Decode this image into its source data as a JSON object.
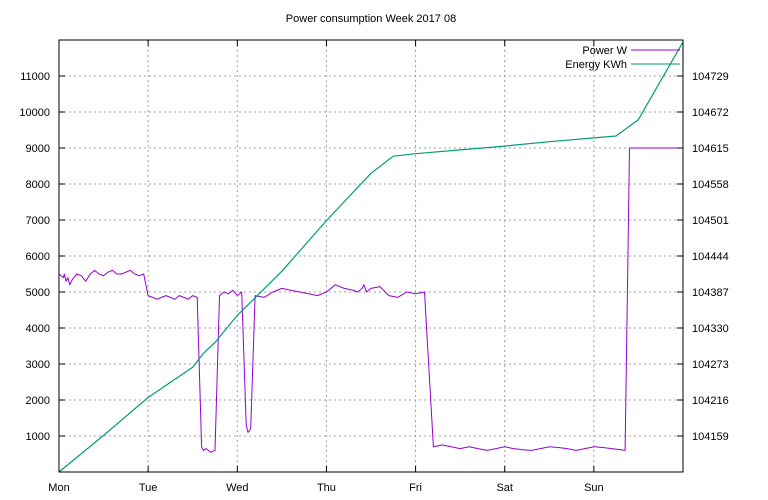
{
  "chart_data": {
    "type": "line",
    "title": "Power consumption Week 2017 08",
    "x_labels": [
      "Mon",
      "Tue",
      "Wed",
      "Thu",
      "Fri",
      "Sat",
      "Sun"
    ],
    "xlim_days": [
      0,
      7
    ],
    "y_left": {
      "ticks": [
        1000,
        2000,
        3000,
        4000,
        5000,
        6000,
        7000,
        8000,
        9000,
        10000,
        11000
      ],
      "ylim": [
        0,
        12000
      ]
    },
    "y_right": {
      "ticks": [
        104159,
        104216,
        104273,
        104330,
        104387,
        104444,
        104501,
        104558,
        104615,
        104672,
        104729
      ],
      "ylim": [
        104102,
        104786
      ]
    },
    "grid": true,
    "legend_position": "top-right",
    "series": [
      {
        "name": "Power W",
        "axis": "left",
        "color": "#9400d3",
        "x": [
          0.0,
          0.05,
          0.06,
          0.08,
          0.1,
          0.12,
          0.15,
          0.2,
          0.25,
          0.3,
          0.35,
          0.4,
          0.45,
          0.5,
          0.55,
          0.6,
          0.65,
          0.7,
          0.75,
          0.8,
          0.85,
          0.9,
          0.95,
          1.0,
          1.05,
          1.1,
          1.15,
          1.2,
          1.25,
          1.3,
          1.35,
          1.4,
          1.45,
          1.5,
          1.55,
          1.6,
          1.62,
          1.65,
          1.7,
          1.75,
          1.8,
          1.85,
          1.9,
          1.95,
          2.0,
          2.05,
          2.1,
          2.12,
          2.15,
          2.2,
          2.3,
          2.4,
          2.5,
          2.6,
          2.7,
          2.8,
          2.9,
          3.0,
          3.1,
          3.2,
          3.3,
          3.35,
          3.4,
          3.42,
          3.45,
          3.5,
          3.6,
          3.7,
          3.8,
          3.9,
          4.0,
          4.1,
          4.2,
          4.3,
          4.4,
          4.5,
          4.6,
          4.7,
          4.8,
          4.9,
          5.0,
          5.1,
          5.2,
          5.3,
          5.4,
          5.5,
          5.6,
          5.7,
          5.8,
          5.9,
          6.0,
          6.1,
          6.2,
          6.3,
          6.35,
          6.4,
          6.5,
          6.6,
          6.7,
          6.8,
          6.9,
          7.0
        ],
        "y": [
          5500,
          5400,
          5500,
          5300,
          5400,
          5200,
          5350,
          5500,
          5450,
          5300,
          5500,
          5600,
          5500,
          5450,
          5550,
          5600,
          5500,
          5500,
          5550,
          5600,
          5500,
          5450,
          5500,
          4900,
          4850,
          4800,
          4850,
          4900,
          4850,
          4800,
          4900,
          4850,
          4800,
          4900,
          4850,
          700,
          600,
          650,
          550,
          600,
          4900,
          5000,
          4950,
          5050,
          4900,
          5000,
          1300,
          1100,
          1200,
          4900,
          4850,
          5000,
          5100,
          5050,
          5000,
          4950,
          4900,
          5000,
          5200,
          5100,
          5050,
          5000,
          5100,
          5200,
          5000,
          5100,
          5150,
          4900,
          4850,
          5000,
          4950,
          5000,
          700,
          750,
          700,
          650,
          700,
          650,
          600,
          650,
          700,
          650,
          620,
          600,
          650,
          700,
          680,
          650,
          600,
          650,
          700,
          680,
          650,
          620,
          600,
          9000,
          9000,
          9000,
          9000,
          9000,
          9000,
          9000
        ]
      },
      {
        "name": "Energy KWh",
        "axis": "right",
        "color": "#009e73",
        "x": [
          0.0,
          0.5,
          1.0,
          1.5,
          1.62,
          1.75,
          2.0,
          2.5,
          3.0,
          3.5,
          3.75,
          4.0,
          4.5,
          5.0,
          5.5,
          5.75,
          6.0,
          6.25,
          6.5,
          7.0
        ],
        "y": [
          104102,
          104160,
          104220,
          104268,
          104290,
          104307,
          104350,
          104420,
          104500,
          104575,
          104602,
          104606,
          104612,
          104618,
          104625,
          104628,
          104631,
          104634,
          104660,
          104783
        ]
      }
    ]
  }
}
